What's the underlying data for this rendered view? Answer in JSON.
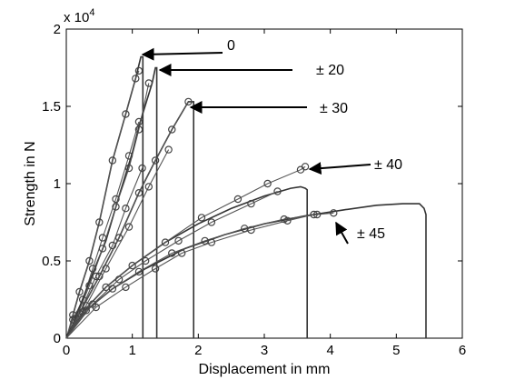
{
  "chart_data": {
    "type": "line",
    "xlabel": "Displacement in mm",
    "ylabel": "Strength in N",
    "exponent_label": "x 10",
    "exponent_power": "4",
    "xlim": [
      0,
      6
    ],
    "ylim": [
      0,
      20000
    ],
    "x_ticks": [
      0,
      1,
      2,
      3,
      4,
      5,
      6
    ],
    "y_ticks": [
      0,
      5000,
      10000,
      15000,
      20000
    ],
    "y_tick_labels": [
      "0",
      "0.5",
      "1",
      "1.5",
      "2"
    ],
    "grid": false,
    "legend": "none",
    "series": [
      {
        "name": "0",
        "color": "#333333",
        "line": [
          [
            0,
            0
          ],
          [
            0.05,
            600
          ],
          [
            0.1,
            1500
          ],
          [
            0.2,
            3000
          ],
          [
            0.35,
            5000
          ],
          [
            0.5,
            7500
          ],
          [
            0.7,
            11500
          ],
          [
            0.9,
            14500
          ],
          [
            1.05,
            16800
          ],
          [
            1.13,
            18200
          ],
          [
            1.16,
            18200
          ],
          [
            1.16,
            0
          ]
        ],
        "markers_a": [
          [
            0.1,
            1500
          ],
          [
            0.2,
            3000
          ],
          [
            0.35,
            5000
          ],
          [
            0.5,
            7500
          ],
          [
            0.7,
            11500
          ],
          [
            0.9,
            14500
          ],
          [
            1.05,
            16800
          ],
          [
            1.1,
            17300
          ]
        ],
        "markers_b": [
          [
            0.1,
            1200
          ],
          [
            0.25,
            2500
          ],
          [
            0.4,
            4500
          ],
          [
            0.55,
            6500
          ],
          [
            0.75,
            9000
          ],
          [
            0.95,
            11800
          ],
          [
            1.1,
            14000
          ]
        ]
      },
      {
        "name": "± 20",
        "color": "#333333",
        "line": [
          [
            0,
            0
          ],
          [
            0.1,
            900
          ],
          [
            0.2,
            2000
          ],
          [
            0.4,
            4200
          ],
          [
            0.6,
            6300
          ],
          [
            0.8,
            9200
          ],
          [
            1.0,
            12000
          ],
          [
            1.12,
            14000
          ],
          [
            1.3,
            16500
          ],
          [
            1.35,
            17500
          ],
          [
            1.37,
            17500
          ],
          [
            1.37,
            0
          ]
        ],
        "markers_a": [
          [
            0.15,
            1300
          ],
          [
            0.35,
            3400
          ],
          [
            0.55,
            5800
          ],
          [
            0.75,
            8500
          ],
          [
            0.95,
            11000
          ],
          [
            1.1,
            13500
          ],
          [
            1.25,
            16500
          ]
        ],
        "markers_b": [
          [
            0.2,
            1600
          ],
          [
            0.45,
            4000
          ],
          [
            0.7,
            6000
          ],
          [
            0.9,
            8400
          ],
          [
            1.15,
            11000
          ]
        ]
      },
      {
        "name": "± 30",
        "color": "#333333",
        "line": [
          [
            0,
            0
          ],
          [
            0.2,
            1600
          ],
          [
            0.5,
            4000
          ],
          [
            0.8,
            6500
          ],
          [
            1.1,
            9400
          ],
          [
            1.35,
            11500
          ],
          [
            1.6,
            13500
          ],
          [
            1.85,
            15300
          ],
          [
            1.93,
            15300
          ],
          [
            1.93,
            0
          ]
        ],
        "markers_a": [
          [
            0.2,
            1600
          ],
          [
            0.5,
            4000
          ],
          [
            0.8,
            6500
          ],
          [
            1.1,
            9400
          ],
          [
            1.35,
            11500
          ],
          [
            1.6,
            13500
          ],
          [
            1.85,
            15300
          ]
        ],
        "markers_b": [
          [
            0.3,
            2100
          ],
          [
            0.6,
            4500
          ],
          [
            0.95,
            7200
          ],
          [
            1.25,
            9800
          ],
          [
            1.55,
            12200
          ]
        ]
      },
      {
        "name": "± 40",
        "color": "#333333",
        "line": [
          [
            0,
            0
          ],
          [
            0.25,
            1700
          ],
          [
            0.6,
            3300
          ],
          [
            1.0,
            4700
          ],
          [
            1.5,
            6200
          ],
          [
            2.0,
            7400
          ],
          [
            2.5,
            8400
          ],
          [
            3.0,
            9200
          ],
          [
            3.4,
            9700
          ],
          [
            3.55,
            9800
          ],
          [
            3.62,
            9700
          ],
          [
            3.65,
            9600
          ],
          [
            3.65,
            0
          ]
        ],
        "markers_a": [
          [
            0.25,
            1700
          ],
          [
            0.6,
            3300
          ],
          [
            1.0,
            4700
          ],
          [
            1.5,
            6200
          ],
          [
            2.05,
            7800
          ],
          [
            2.6,
            9000
          ],
          [
            3.05,
            10000
          ],
          [
            3.55,
            10900
          ],
          [
            3.62,
            11100
          ]
        ],
        "markers_b": [
          [
            0.4,
            2200
          ],
          [
            0.8,
            3800
          ],
          [
            1.2,
            5000
          ],
          [
            1.7,
            6300
          ],
          [
            2.2,
            7500
          ],
          [
            2.8,
            8700
          ],
          [
            3.2,
            9500
          ]
        ]
      },
      {
        "name": "± 45",
        "color": "#333333",
        "line": [
          [
            0,
            0
          ],
          [
            0.3,
            1800
          ],
          [
            0.7,
            3200
          ],
          [
            1.2,
            4500
          ],
          [
            1.8,
            5800
          ],
          [
            2.4,
            6700
          ],
          [
            3.0,
            7400
          ],
          [
            3.6,
            7900
          ],
          [
            4.2,
            8300
          ],
          [
            4.7,
            8600
          ],
          [
            5.1,
            8700
          ],
          [
            5.35,
            8700
          ],
          [
            5.42,
            8400
          ],
          [
            5.45,
            8000
          ],
          [
            5.45,
            0
          ]
        ],
        "markers_a": [
          [
            0.3,
            1800
          ],
          [
            0.7,
            3200
          ],
          [
            1.1,
            4300
          ],
          [
            1.6,
            5500
          ],
          [
            2.1,
            6300
          ],
          [
            2.7,
            7100
          ],
          [
            3.3,
            7700
          ],
          [
            3.8,
            8000
          ],
          [
            4.05,
            8100
          ]
        ],
        "markers_b": [
          [
            0.45,
            2000
          ],
          [
            0.9,
            3300
          ],
          [
            1.35,
            4500
          ],
          [
            1.75,
            5500
          ],
          [
            2.2,
            6200
          ],
          [
            2.8,
            7000
          ],
          [
            3.35,
            7600
          ],
          [
            3.75,
            8000
          ]
        ]
      }
    ],
    "annotations": [
      {
        "text": "0",
        "series": 0
      },
      {
        "text": "± 20",
        "series": 1
      },
      {
        "text": "± 30",
        "series": 2
      },
      {
        "text": "± 40",
        "series": 3
      },
      {
        "text": "± 45",
        "series": 4
      }
    ]
  }
}
